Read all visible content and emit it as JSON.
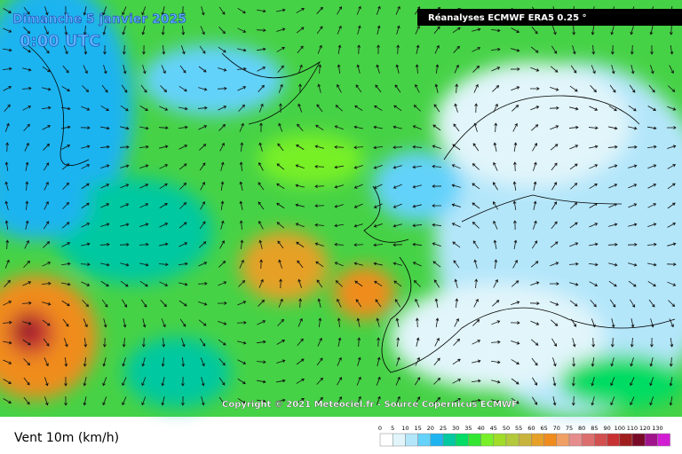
{
  "header": {
    "title": "Dimanche 5 janvier 2025",
    "time": "0:00 UTC",
    "source_box": "Réanalyses ECMWF ERA5 0.25 °"
  },
  "copyright": "Copyright © 2021 Meteociel.fr - Source Copernicus ECMWF",
  "legend": {
    "title": "Vent 10m (km/h)",
    "items": [
      {
        "label": "0",
        "color": "#ffffff"
      },
      {
        "label": "5",
        "color": "#e1f5fa"
      },
      {
        "label": "10",
        "color": "#b4e6fa"
      },
      {
        "label": "15",
        "color": "#64d2fa"
      },
      {
        "label": "20",
        "color": "#1eb4f0"
      },
      {
        "label": "25",
        "color": "#00c8a0"
      },
      {
        "label": "30",
        "color": "#00dc64"
      },
      {
        "label": "35",
        "color": "#32e632"
      },
      {
        "label": "40",
        "color": "#78f028"
      },
      {
        "label": "45",
        "color": "#a0dc28"
      },
      {
        "label": "50",
        "color": "#b4c83c"
      },
      {
        "label": "55",
        "color": "#c8b43c"
      },
      {
        "label": "60",
        "color": "#e6a028"
      },
      {
        "label": "65",
        "color": "#f08c1e"
      },
      {
        "label": "70",
        "color": "#f0a064"
      },
      {
        "label": "75",
        "color": "#e68c8c"
      },
      {
        "label": "80",
        "color": "#dc6e6e"
      },
      {
        "label": "85",
        "color": "#d25050"
      },
      {
        "label": "90",
        "color": "#c83232"
      },
      {
        "label": "100",
        "color": "#a01e1e"
      },
      {
        "label": "110",
        "color": "#780a28"
      },
      {
        "label": "120",
        "color": "#a0148c"
      },
      {
        "label": "130",
        "color": "#d21ed2"
      }
    ]
  }
}
